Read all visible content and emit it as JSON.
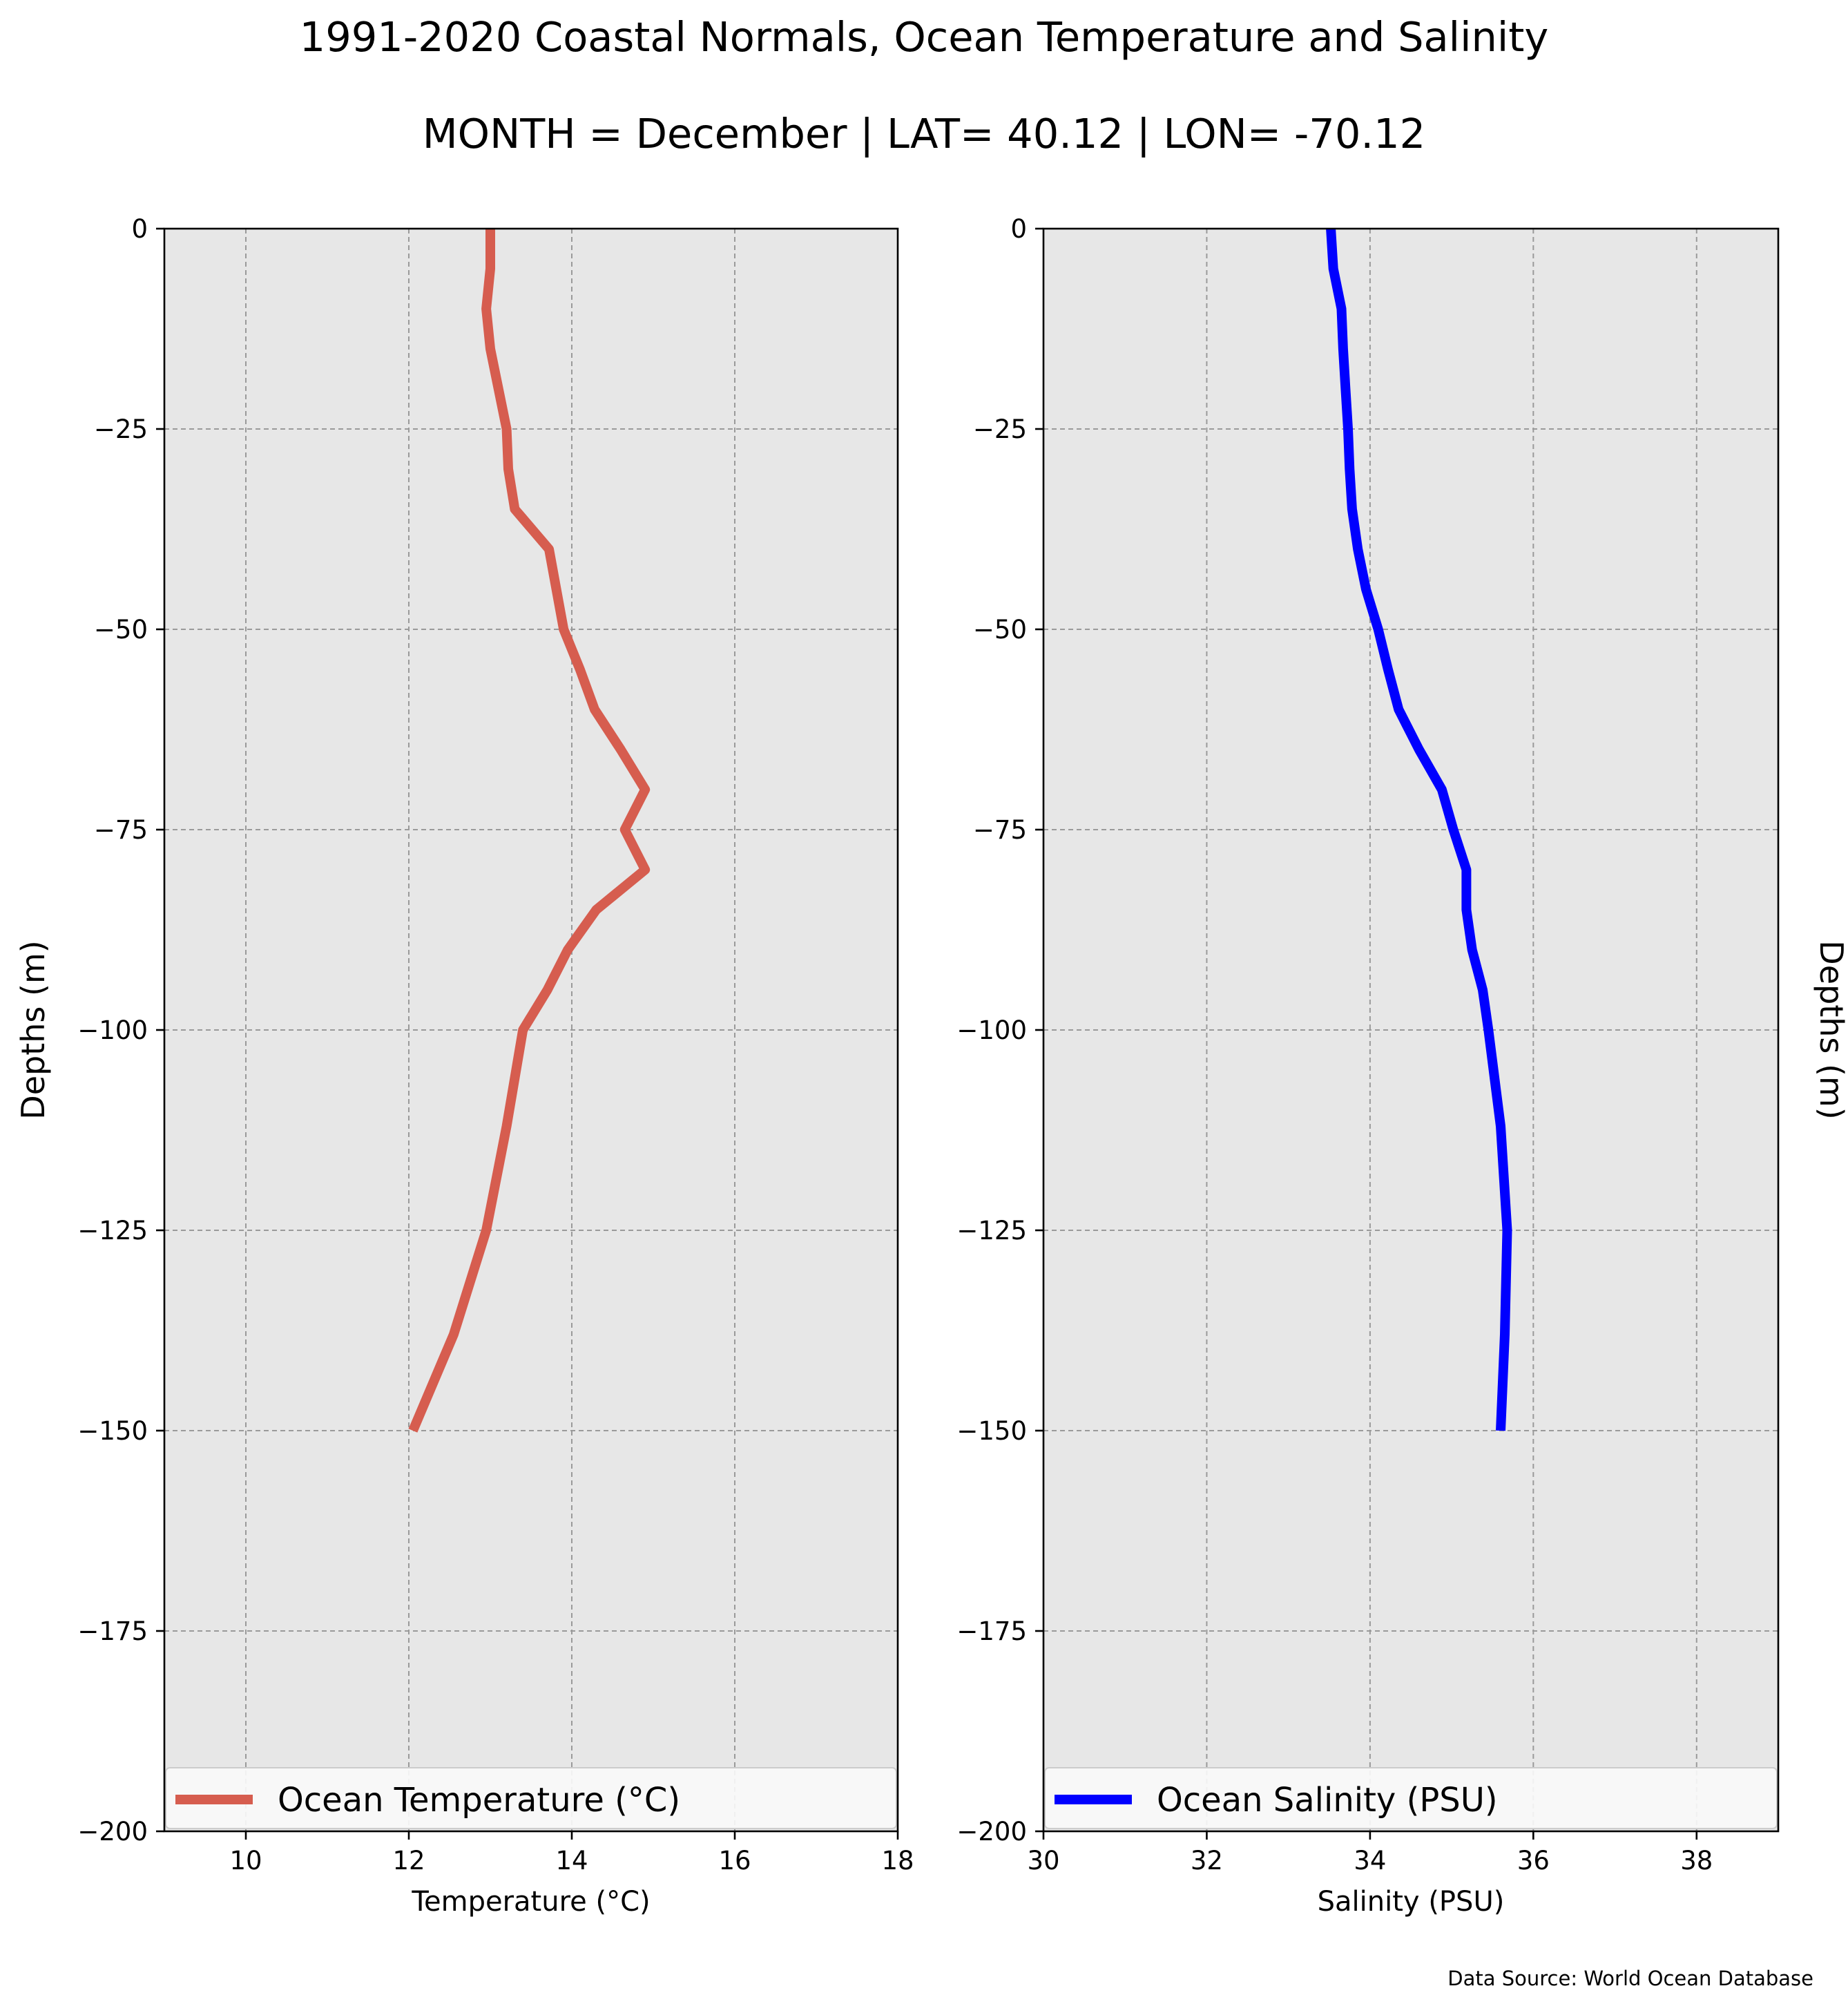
{
  "figure": {
    "title": "1991-2020 Coastal Normals, Ocean Temperature and Salinity",
    "subtitle": "MONTH = December | LAT= 40.12 | LON= -70.12",
    "source": "Data Source: World Ocean Database",
    "background": "#e7e7e7"
  },
  "chart_data": [
    {
      "type": "line",
      "xlabel": "Temperature ($^\\circ$C)",
      "xlabel_display": "Temperature (°C)",
      "ylabel": "Depths (m)",
      "xlim": [
        9,
        18
      ],
      "ylim": [
        -200,
        0
      ],
      "xticks": [
        10,
        12,
        14,
        16,
        18
      ],
      "yticks": [
        0,
        -25,
        -50,
        -75,
        -100,
        -125,
        -150,
        -175,
        -200
      ],
      "grid": true,
      "legend_placement": "bottom",
      "series": [
        {
          "name": "Ocean Temperature (°C)",
          "color": "#d65d4f",
          "x": [
            13.0,
            13.0,
            12.95,
            13.0,
            13.1,
            13.2,
            13.22,
            13.3,
            13.72,
            13.9,
            14.1,
            14.28,
            14.6,
            14.9,
            14.65,
            14.9,
            14.3,
            13.95,
            13.7,
            13.4,
            13.2,
            12.95,
            12.55,
            12.05
          ],
          "y": [
            0,
            -5,
            -10,
            -15,
            -20,
            -25,
            -30,
            -35,
            -40,
            -50,
            -55,
            -60,
            -65,
            -70,
            -75,
            -80,
            -85,
            -90,
            -95,
            -100,
            -112,
            -125,
            -138,
            -150
          ]
        }
      ]
    },
    {
      "type": "line",
      "xlabel": "Salinity (PSU)",
      "ylabel": "Depths (m)",
      "xlim": [
        30,
        39
      ],
      "ylim": [
        -200,
        0
      ],
      "xticks": [
        30,
        32,
        34,
        36,
        38
      ],
      "yticks": [
        0,
        -25,
        -50,
        -75,
        -100,
        -125,
        -150,
        -175,
        -200
      ],
      "grid": true,
      "legend_placement": "bottom",
      "series": [
        {
          "name": "Ocean Salinity (PSU)",
          "color": "#0000ff",
          "x": [
            33.52,
            33.55,
            33.65,
            33.67,
            33.7,
            33.73,
            33.75,
            33.78,
            33.85,
            33.95,
            34.1,
            34.22,
            34.35,
            34.6,
            34.88,
            35.02,
            35.18,
            35.18,
            35.25,
            35.38,
            35.45,
            35.6,
            35.68,
            35.65,
            35.6
          ],
          "y": [
            0,
            -5,
            -10,
            -15,
            -20,
            -25,
            -30,
            -35,
            -40,
            -45,
            -50,
            -55,
            -60,
            -65,
            -70,
            -75,
            -80,
            -85,
            -90,
            -95,
            -100,
            -112,
            -125,
            -138,
            -150
          ]
        }
      ]
    }
  ]
}
